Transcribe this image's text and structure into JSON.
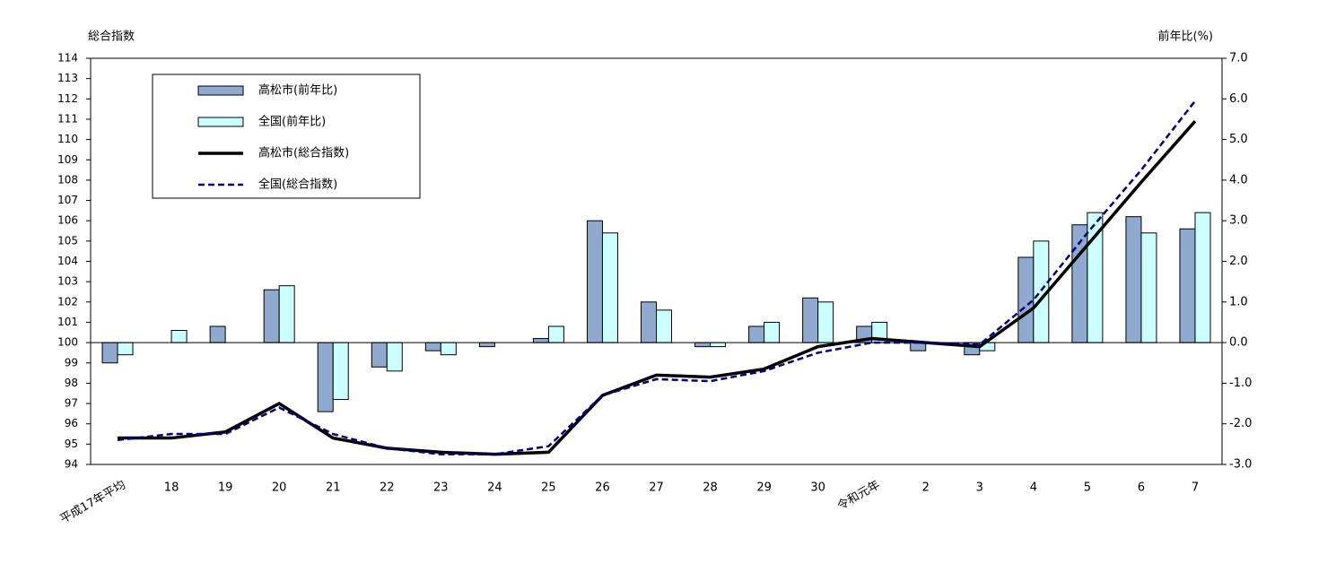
{
  "chart_data": {
    "type": "bar-line",
    "y_label": "総合指数",
    "y2_label": "前年比(%)",
    "categories": [
      "平成17年平均",
      "18",
      "19",
      "20",
      "21",
      "22",
      "23",
      "24",
      "25",
      "26",
      "27",
      "28",
      "29",
      "30",
      "令和元年",
      "2",
      "3",
      "4",
      "5",
      "6",
      "7"
    ],
    "ylim": [
      94,
      114
    ],
    "yticks": [
      94,
      95,
      96,
      97,
      98,
      99,
      100,
      101,
      102,
      103,
      104,
      105,
      106,
      107,
      108,
      109,
      110,
      111,
      112,
      113,
      114
    ],
    "y2lim": [
      -3,
      7
    ],
    "y2ticks": [
      {
        "value": -3,
        "label": "-3.0"
      },
      {
        "value": -2,
        "label": "-2.0"
      },
      {
        "value": -1,
        "label": "-1.0"
      },
      {
        "value": 0,
        "label": "0.0"
      },
      {
        "value": 1,
        "label": "1.0"
      },
      {
        "value": 2,
        "label": "2.0"
      },
      {
        "value": 3,
        "label": "3.0"
      },
      {
        "value": 4,
        "label": "4.0"
      },
      {
        "value": 5,
        "label": "5.0"
      },
      {
        "value": 6,
        "label": "6.0"
      },
      {
        "value": 7,
        "label": "7.0"
      }
    ],
    "series": [
      {
        "name": "高松市(前年比)",
        "type": "bar",
        "axis": "y2",
        "color": "#8fa9cf",
        "values": [
          -0.5,
          0.0,
          0.4,
          1.3,
          -1.7,
          -0.6,
          -0.2,
          -0.1,
          0.1,
          3.0,
          1.0,
          -0.1,
          0.4,
          1.1,
          0.4,
          -0.2,
          -0.3,
          2.1,
          2.9,
          3.1,
          2.8
        ]
      },
      {
        "name": "全国(前年比)",
        "type": "bar",
        "axis": "y2",
        "color": "#ccffff",
        "values": [
          -0.3,
          0.3,
          0.0,
          1.4,
          -1.4,
          -0.7,
          -0.3,
          0.0,
          0.4,
          2.7,
          0.8,
          -0.1,
          0.5,
          1.0,
          0.5,
          0.0,
          -0.2,
          2.5,
          3.2,
          2.7,
          3.2
        ]
      },
      {
        "name": "高松市(総合指数)",
        "type": "line",
        "color": "#000000",
        "dashed": false,
        "values": [
          95.3,
          95.3,
          95.6,
          97.0,
          95.3,
          94.8,
          94.6,
          94.5,
          94.6,
          97.4,
          98.4,
          98.3,
          98.7,
          99.8,
          100.2,
          100.0,
          99.8,
          101.7,
          104.8,
          107.9,
          110.9
        ]
      },
      {
        "name": "全国(総合指数)",
        "type": "line",
        "color": "#000080",
        "dashed": true,
        "values": [
          95.2,
          95.5,
          95.5,
          96.8,
          95.5,
          94.8,
          94.5,
          94.5,
          94.9,
          97.4,
          98.2,
          98.1,
          98.6,
          99.5,
          100.0,
          100.0,
          99.9,
          102.1,
          105.4,
          108.5,
          111.9
        ]
      }
    ]
  }
}
